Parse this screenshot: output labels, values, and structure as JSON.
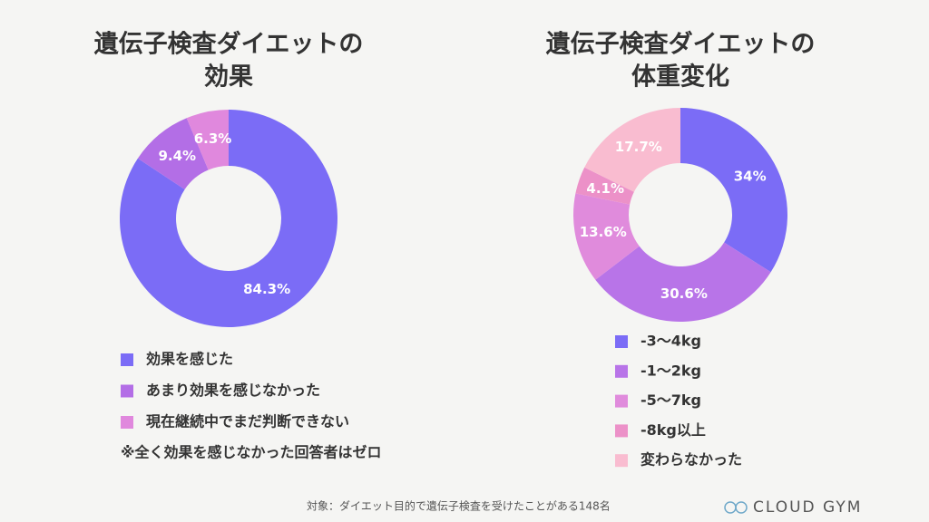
{
  "chart_data": [
    {
      "type": "pie",
      "title": [
        "遺伝子検査ダイエットの",
        "効果"
      ],
      "categories": [
        "効果を感じた",
        "あまり効果を感じなかった",
        "現在継続中でまだ判断できない"
      ],
      "values": [
        84.3,
        9.4,
        6.3
      ],
      "value_labels": [
        "84.3%",
        "9.4%",
        "6.3%"
      ],
      "colors": [
        "#7b6cf6",
        "#b36ee6",
        "#e088dd"
      ],
      "note": "※全く効果を感じなかった回答者はゼロ"
    },
    {
      "type": "pie",
      "title": [
        "遺伝子検査ダイエットの",
        "体重変化"
      ],
      "categories": [
        "-3〜4kg",
        "-1〜2kg",
        "-5〜7kg",
        "-8kg以上",
        "変わらなかった"
      ],
      "values": [
        34,
        30.6,
        13.6,
        4.1,
        17.7
      ],
      "value_labels": [
        "34%",
        "30.6%",
        "13.6%",
        "4.1%",
        "17.7%"
      ],
      "colors": [
        "#7b6cf6",
        "#b874e8",
        "#e08bdc",
        "#ec91c8",
        "#f9bcd0"
      ]
    }
  ],
  "footer": {
    "source": "対象：ダイエット目的で遺伝子検査を受けたことがある148名",
    "brand": "CLOUD GYM"
  }
}
